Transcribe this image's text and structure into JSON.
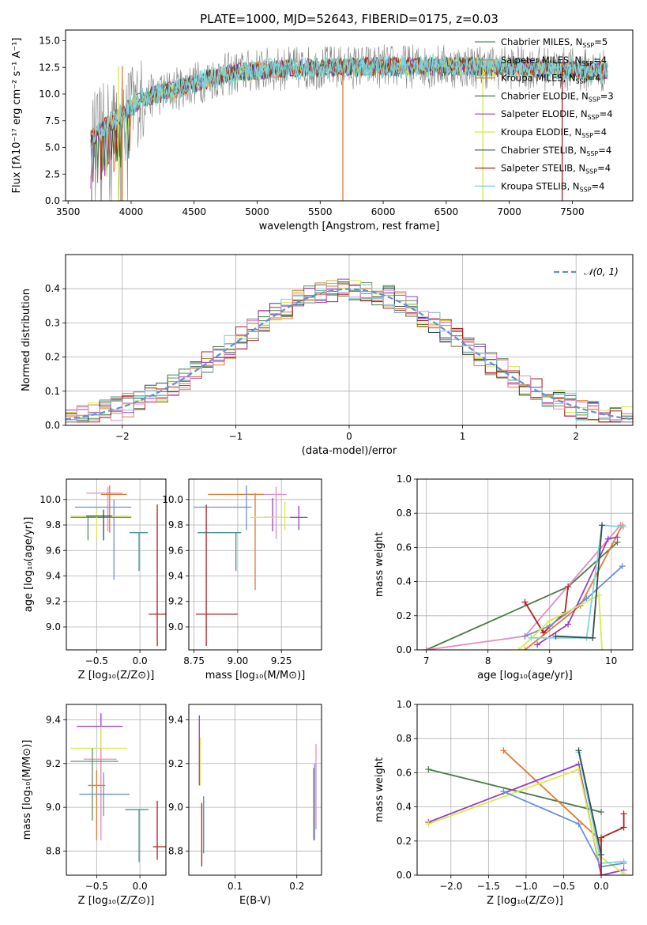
{
  "figure_title": "PLATE=1000, MJD=52643, FIBERID=0175, z=0.03",
  "colors": {
    "spec_data": "#808080",
    "cm": "#5c8a6a",
    "sm": "#e07b39",
    "km": "#d08030",
    "ce": "#4a7a4a",
    "se": "#9a3fbf",
    "ke": "#d6e84a",
    "cs": "#2f4f4f",
    "ss": "#b22222",
    "ks": "#80c8d8",
    "cyan": "#7fd6d6",
    "pink": "#e88ac0",
    "blue": "#6a8fdc",
    "green": "#5f8f5f",
    "orange": "#e27a2e",
    "purple": "#9a3fbf",
    "yellow": "#d8ec4a",
    "red": "#b22222",
    "teal": "#4a9090",
    "gauss": "#5f8fd8",
    "grid": "#b0b0b0"
  },
  "chart_data": [
    {
      "id": "spectrum",
      "type": "line",
      "title": "PLATE=1000, MJD=52643, FIBERID=0175, z=0.03",
      "xlabel": "wavelength [Angstrom, rest frame]",
      "ylabel": "Flux [fλ10⁻¹⁷ erg cm⁻² s⁻¹ A⁻¹]",
      "xlim": [
        3480,
        7980
      ],
      "ylim": [
        0,
        16
      ],
      "xticks": [
        3500,
        4000,
        4500,
        5000,
        5500,
        6000,
        6500,
        7000,
        7500
      ],
      "yticks": [
        0.0,
        2.5,
        5.0,
        7.5,
        10.0,
        12.5,
        15.0
      ],
      "legend_position": "right",
      "legend": [
        "Chabrier MILES, N_SSP=5",
        "Salpeter MILES, N_SSP=4",
        "Kroupa MILES, N_SSP=4",
        "Chabrier ELODIE, N_SSP=3",
        "Salpeter ELODIE, N_SSP=4",
        "Kroupa ELODIE, N_SSP=4",
        "Chabrier STELIB, N_SSP=4",
        "Salpeter STELIB, N_SSP=4",
        "Kroupa STELIB, N_SSP=4"
      ],
      "continuum": {
        "x": [
          3680,
          3800,
          3900,
          4000,
          4100,
          4300,
          4500,
          4700,
          4900,
          5100,
          5300,
          5500,
          5700,
          5900,
          6100,
          6300,
          6500,
          6700,
          6900,
          7100,
          7300,
          7500,
          7700,
          7780
        ],
        "y": [
          5.8,
          7.0,
          7.8,
          8.8,
          9.6,
          10.3,
          11.0,
          11.7,
          12.1,
          12.3,
          12.4,
          12.5,
          12.5,
          12.6,
          12.6,
          12.6,
          12.6,
          12.6,
          12.5,
          12.5,
          12.4,
          12.3,
          12.2,
          12.2
        ]
      },
      "spikes": [
        5680,
        6790,
        7420,
        3900,
        3930
      ],
      "wl_range": [
        3680,
        7780
      ]
    },
    {
      "id": "residuals",
      "type": "step",
      "xlabel": "(data-model)/error",
      "ylabel": "Normed distribution",
      "xlim": [
        -2.5,
        2.5
      ],
      "ylim": [
        0,
        0.5
      ],
      "xticks": [
        -2,
        -1,
        0,
        1,
        2
      ],
      "yticks": [
        0.0,
        0.1,
        0.2,
        0.3,
        0.4
      ],
      "legend": [
        "𝒩(0, 1)"
      ],
      "legend_position": "top-right",
      "gaussian": {
        "mu": 0,
        "sigma": 1
      }
    },
    {
      "id": "age_vs_Z",
      "type": "scatter",
      "xlabel": "Z [log₁₀(Z/Z⊙)]",
      "ylabel": "age  [log₁₀(age/yr)]",
      "xlim": [
        -0.85,
        0.3
      ],
      "ylim": [
        8.82,
        10.16
      ],
      "xticks": [
        -0.5,
        0.0
      ],
      "yticks": [
        9.0,
        9.2,
        9.4,
        9.6,
        9.8,
        10.0
      ],
      "points": [
        {
          "x": -0.37,
          "y": 10.05,
          "xerr": [
            0.25,
            0.17
          ],
          "yerr": [
            0.3,
            0.05
          ],
          "color": "pink"
        },
        {
          "x": -0.35,
          "y": 10.04,
          "xerr": [
            0.1,
            0.2
          ],
          "yerr": [
            0.3,
            0.07
          ],
          "color": "orange"
        },
        {
          "x": -0.3,
          "y": 9.94,
          "xerr": [
            0.45,
            0.2
          ],
          "yerr": [
            0.57,
            0.06
          ],
          "color": "blue"
        },
        {
          "x": -0.6,
          "y": 9.86,
          "xerr": [
            0.2,
            0.5
          ],
          "yerr": [
            0.18,
            0.01
          ],
          "color": "green"
        },
        {
          "x": -0.5,
          "y": 9.87,
          "xerr": [
            0.3,
            0.4
          ],
          "yerr": [
            0.18,
            0.05
          ],
          "color": "yellow"
        },
        {
          "x": -0.42,
          "y": 9.87,
          "xerr": [
            0.2,
            0.1
          ],
          "yerr": [
            0.19,
            0.05
          ],
          "color": "cs"
        },
        {
          "x": -0.01,
          "y": 9.74,
          "xerr": [
            0.11,
            0.1
          ],
          "yerr": [
            0.3,
            0.0
          ],
          "color": "teal"
        },
        {
          "x": 0.2,
          "y": 9.1,
          "xerr": [
            0.1,
            0.1
          ],
          "yerr": [
            0.25,
            0.86
          ],
          "color": "red"
        }
      ]
    },
    {
      "id": "age_vs_mass",
      "type": "scatter",
      "xlabel": "mass [log₁₀(M/M⊙)]",
      "ylabel": "",
      "xlim": [
        8.72,
        9.48
      ],
      "ylim": [
        8.82,
        10.16
      ],
      "xticks": [
        8.75,
        9.0,
        9.25
      ],
      "yticks": [
        9.0,
        9.2,
        9.4,
        9.6,
        9.8,
        10.0
      ],
      "points": [
        {
          "x": 9.22,
          "y": 10.04,
          "xerr": [
            0.22,
            0.06
          ],
          "yerr": [
            0.35,
            0.06
          ],
          "color": "pink"
        },
        {
          "x": 9.1,
          "y": 10.04,
          "xerr": [
            0.27,
            0.05
          ],
          "yerr": [
            0.75,
            0.01
          ],
          "color": "orange"
        },
        {
          "x": 9.05,
          "y": 9.94,
          "xerr": [
            0.3,
            0.03
          ],
          "yerr": [
            0.18,
            0.17
          ],
          "color": "blue"
        },
        {
          "x": 9.2,
          "y": 9.86,
          "xerr": [
            0.05,
            0.05
          ],
          "yerr": [
            0.11,
            0.15
          ],
          "color": "purple"
        },
        {
          "x": 9.27,
          "y": 9.86,
          "xerr": [
            0.2,
            0.08
          ],
          "yerr": [
            0.1,
            0.12
          ],
          "color": "yellow"
        },
        {
          "x": 9.35,
          "y": 9.86,
          "xerr": [
            0.05,
            0.05
          ],
          "yerr": [
            0.1,
            0.09
          ],
          "color": "purple"
        },
        {
          "x": 8.99,
          "y": 9.74,
          "xerr": [
            0.22,
            0.03
          ],
          "yerr": [
            0.3,
            0.0
          ],
          "color": "teal"
        },
        {
          "x": 8.82,
          "y": 9.1,
          "xerr": [
            0.06,
            0.18
          ],
          "yerr": [
            0.25,
            0.86
          ],
          "color": "red"
        }
      ]
    },
    {
      "id": "massweight_vs_age",
      "type": "line",
      "xlabel": "age  [log₁₀(age/yr)]",
      "ylabel": "mass weight",
      "xlim": [
        6.85,
        10.35
      ],
      "ylim": [
        0,
        1.0
      ],
      "xticks": [
        7,
        8,
        9,
        10
      ],
      "yticks": [
        0.0,
        0.2,
        0.4,
        0.6,
        0.8,
        1.0
      ],
      "series": [
        {
          "color": "ce",
          "x": [
            7.0,
            9.3,
            10.1
          ],
          "y": [
            0.0,
            0.37,
            0.63
          ]
        },
        {
          "color": "orange",
          "x": [
            8.6,
            9.5,
            10.18
          ],
          "y": [
            0.0,
            0.26,
            0.73
          ]
        },
        {
          "color": "pink",
          "x": [
            7.0,
            8.6,
            10.15
          ],
          "y": [
            0.0,
            0.08,
            0.73
          ]
        },
        {
          "color": "red",
          "x": [
            8.6,
            8.9,
            9.25,
            9.3
          ],
          "y": [
            0.28,
            0.1,
            0.22,
            0.37
          ]
        },
        {
          "color": "blue",
          "x": [
            8.6,
            9.0,
            9.6,
            10.18
          ],
          "y": [
            0.08,
            0.14,
            0.3,
            0.49
          ]
        },
        {
          "color": "purple",
          "x": [
            8.8,
            9.3,
            9.95,
            10.1
          ],
          "y": [
            0.03,
            0.15,
            0.65,
            0.66
          ]
        },
        {
          "color": "yellow",
          "x": [
            8.5,
            9.0,
            9.8,
            9.85
          ],
          "y": [
            0.0,
            0.17,
            0.32,
            0.0
          ]
        },
        {
          "color": "cyan",
          "x": [
            8.7,
            9.6,
            9.85,
            10.2
          ],
          "y": [
            0.07,
            0.07,
            0.73,
            0.72
          ]
        },
        {
          "color": "cs",
          "x": [
            9.1,
            9.7,
            9.85
          ],
          "y": [
            0.08,
            0.07,
            0.73
          ]
        }
      ]
    },
    {
      "id": "mass_vs_Z",
      "type": "scatter",
      "xlabel": "Z [log₁₀(Z/Z⊙)]",
      "ylabel": "mass [log₁₀(M/M⊙)]",
      "xlim": [
        -0.85,
        0.3
      ],
      "ylim": [
        8.69,
        9.47
      ],
      "xticks": [
        -0.5,
        0.0
      ],
      "yticks": [
        8.8,
        9.0,
        9.2,
        9.4
      ],
      "points": [
        {
          "x": -0.45,
          "y": 9.37,
          "xerr": [
            0.28,
            0.25
          ],
          "yerr": [
            0.43,
            0.06
          ],
          "color": "purple"
        },
        {
          "x": -0.45,
          "y": 9.27,
          "xerr": [
            0.35,
            0.3
          ],
          "yerr": [
            0.35,
            0.1
          ],
          "color": "yellow"
        },
        {
          "x": -0.45,
          "y": 9.22,
          "xerr": [
            0.2,
            0.18
          ],
          "yerr": [
            0.37,
            0.05
          ],
          "color": "pink"
        },
        {
          "x": -0.55,
          "y": 9.21,
          "xerr": [
            0.25,
            0.3
          ],
          "yerr": [
            0.27,
            0.06
          ],
          "color": "green"
        },
        {
          "x": -0.5,
          "y": 9.1,
          "xerr": [
            0.1,
            0.1
          ],
          "yerr": [
            0.25,
            0.07
          ],
          "color": "orange"
        },
        {
          "x": -0.42,
          "y": 9.06,
          "xerr": [
            0.28,
            0.3
          ],
          "yerr": [
            0.1,
            0.1
          ],
          "color": "blue"
        },
        {
          "x": -0.01,
          "y": 8.99,
          "xerr": [
            0.16,
            0.11
          ],
          "yerr": [
            0.24,
            0.0
          ],
          "color": "teal"
        },
        {
          "x": 0.2,
          "y": 8.82,
          "xerr": [
            0.05,
            0.1
          ],
          "yerr": [
            0.06,
            0.21
          ],
          "color": "red"
        }
      ]
    },
    {
      "id": "mass_vs_EBV",
      "type": "scatter",
      "xlabel": "E(B-V)",
      "ylabel": "",
      "xlim": [
        0.025,
        0.24
      ],
      "ylim": [
        8.69,
        9.47
      ],
      "xticks": [
        0.1,
        0.2
      ],
      "yticks": [
        8.8,
        9.0,
        9.2,
        9.4
      ],
      "points": [
        {
          "x": 0.042,
          "y": 9.35,
          "xerr": [
            0,
            0
          ],
          "yerr": [
            0.25,
            0.07
          ],
          "color": "purple"
        },
        {
          "x": 0.044,
          "y": 9.27,
          "xerr": [
            0,
            0
          ],
          "yerr": [
            0.17,
            0.05
          ],
          "color": "yellow"
        },
        {
          "x": 0.046,
          "y": 8.9,
          "xerr": [
            0,
            0
          ],
          "yerr": [
            0.17,
            0.12
          ],
          "color": "red"
        },
        {
          "x": 0.049,
          "y": 8.95,
          "xerr": [
            0,
            0
          ],
          "yerr": [
            0.16,
            0.1
          ],
          "color": "teal"
        },
        {
          "x": 0.227,
          "y": 9.1,
          "xerr": [
            0,
            0
          ],
          "yerr": [
            0.25,
            0.08
          ],
          "color": "orange"
        },
        {
          "x": 0.229,
          "y": 9.05,
          "xerr": [
            0,
            0
          ],
          "yerr": [
            0.2,
            0.15
          ],
          "color": "blue"
        },
        {
          "x": 0.231,
          "y": 9.1,
          "xerr": [
            0,
            0
          ],
          "yerr": [
            0.2,
            0.19
          ],
          "color": "pink"
        }
      ]
    },
    {
      "id": "massweight_vs_Z",
      "type": "line",
      "xlabel": "Z [log₁₀(Z/Z⊙)]",
      "ylabel": "mass weight",
      "xlim": [
        -2.45,
        0.42
      ],
      "ylim": [
        0,
        1.0
      ],
      "xticks": [
        -2.0,
        -1.5,
        -1.0,
        -0.5,
        0.0
      ],
      "yticks": [
        0.0,
        0.2,
        0.4,
        0.6,
        0.8,
        1.0
      ],
      "series": [
        {
          "color": "ce",
          "x": [
            -2.3,
            0.0
          ],
          "y": [
            0.62,
            0.37
          ]
        },
        {
          "color": "orange",
          "x": [
            -1.3,
            0.0
          ],
          "y": [
            0.73,
            0.2
          ]
        },
        {
          "color": "purple",
          "x": [
            -2.3,
            -0.3,
            0.0,
            0.3
          ],
          "y": [
            0.31,
            0.65,
            0.0,
            0.03
          ]
        },
        {
          "color": "yellow",
          "x": [
            -2.3,
            -0.3,
            -0.05,
            0.3
          ],
          "y": [
            0.3,
            0.62,
            0.12,
            0.01
          ]
        },
        {
          "color": "blue",
          "x": [
            -1.3,
            -0.3,
            0.0,
            0.3
          ],
          "y": [
            0.49,
            0.3,
            0.05,
            0.07
          ]
        },
        {
          "color": "cyan",
          "x": [
            -0.3,
            0.0,
            0.3
          ],
          "y": [
            0.72,
            0.07,
            0.08
          ]
        },
        {
          "color": "red",
          "x": [
            0.0,
            0.0,
            0.3,
            0.3
          ],
          "y": [
            0.0,
            0.22,
            0.28,
            0.36
          ]
        },
        {
          "color": "cs",
          "x": [
            -0.3,
            0.0
          ],
          "y": [
            0.73,
            0.12
          ]
        }
      ]
    }
  ]
}
